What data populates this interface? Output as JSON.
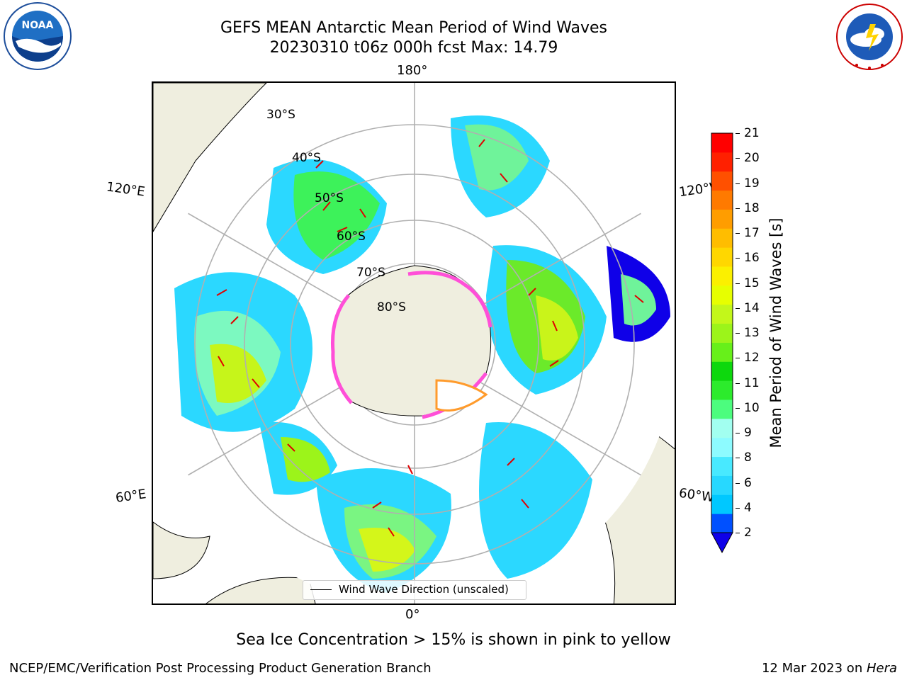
{
  "header": {
    "title_line1": "GEFS MEAN Antarctic Mean Period of Wind Waves",
    "title_line2": "20230310 t06z 000h fcst   Max: 14.79"
  },
  "logos": {
    "left": "NOAA",
    "right": "NATIONAL WEATHER SERVICE"
  },
  "map": {
    "projection": "south-polar-stereographic",
    "longitude_labels": {
      "top": "180°",
      "bottom": "0°",
      "left_upper": "120°E",
      "left_lower": "60°E",
      "right_upper": "120°W",
      "right_lower": "60°W"
    },
    "latitude_labels": [
      "30°S",
      "40°S",
      "50°S",
      "60°S",
      "70°S",
      "80°S"
    ],
    "land_color": "#efeedf",
    "sea_ice_colors": [
      "#ff4fd8",
      "#ff9b2c",
      "#ffe14a"
    ]
  },
  "legend": {
    "label": "Wind Wave Direction (unscaled)",
    "arrow_color": "#e00000"
  },
  "colorbar": {
    "label": "Mean Period of Wind Waves [s]",
    "ticks": [
      "21",
      "20",
      "19",
      "18",
      "17",
      "16",
      "15",
      "14",
      "13",
      "12",
      "11",
      "10",
      "9",
      "8",
      "6",
      "4",
      "2"
    ],
    "colors": [
      "#0f00e8",
      "#0050ff",
      "#00c8ff",
      "#27d8ff",
      "#48e9ff",
      "#8dfbff",
      "#a2fff0",
      "#4cfd7e",
      "#2ceb2c",
      "#0dd80d",
      "#67f01a",
      "#9cf41a",
      "#c3f71a",
      "#e7ff00",
      "#fbf000",
      "#ffd700",
      "#ffbd00",
      "#ff9d00",
      "#ff7a00",
      "#ff5000",
      "#ff2000",
      "#ff0000"
    ]
  },
  "footer": {
    "sea_ice_note": "Sea Ice Concentration > 15% is shown in pink to yellow",
    "branch": "NCEP/EMC/Verification Post Processing Product Generation Branch",
    "date_prefix": "12 Mar 2023 on ",
    "machine": "Hera"
  }
}
